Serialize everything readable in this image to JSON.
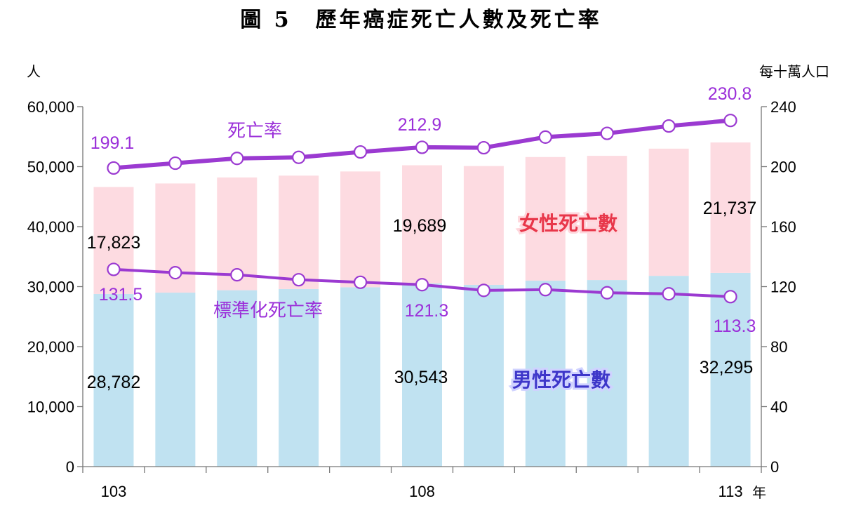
{
  "title": "圖 5　歷年癌症死亡人數及死亡率",
  "chart_data": {
    "type": "bar",
    "stacked": true,
    "categories": [
      "103",
      "104",
      "105",
      "106",
      "107",
      "108",
      "109",
      "110",
      "111",
      "112",
      "113"
    ],
    "x_tick_labels": [
      "103",
      "",
      "",
      "",
      "",
      "108",
      "",
      "",
      "",
      "",
      "113"
    ],
    "x_unit": "年",
    "left_axis": {
      "unit": "人",
      "ylim": [
        0,
        60000
      ],
      "ticks": [
        "0",
        "10,000",
        "20,000",
        "30,000",
        "40,000",
        "50,000",
        "60,000"
      ]
    },
    "right_axis": {
      "unit": "每十萬人口",
      "ylim": [
        0,
        240
      ],
      "ticks": [
        "0",
        "40",
        "80",
        "120",
        "160",
        "200",
        "240"
      ]
    },
    "bar_series": [
      {
        "name": "男性死亡數",
        "color": "#c0e2f1",
        "values": [
          28782,
          29000,
          29400,
          29600,
          29900,
          30543,
          30300,
          31000,
          31100,
          31800,
          32295
        ]
      },
      {
        "name": "女性死亡數",
        "color": "#fddbe1",
        "values": [
          17823,
          18200,
          18800,
          18900,
          19300,
          19689,
          19800,
          20600,
          20700,
          21200,
          21737
        ]
      }
    ],
    "line_series": [
      {
        "name": "死亡率",
        "axis": "right",
        "color": "#9b3ad1",
        "width": 6,
        "values": [
          199.1,
          202.3,
          205.5,
          206.2,
          209.8,
          212.9,
          212.6,
          219.7,
          222.2,
          227.1,
          230.8
        ]
      },
      {
        "name": "標準化死亡率",
        "axis": "right",
        "color": "#9b3ad1",
        "width": 4,
        "values": [
          131.5,
          129.3,
          127.9,
          124.6,
          122.9,
          121.3,
          117.5,
          118.0,
          115.9,
          115.2,
          113.3
        ]
      }
    ],
    "data_labels": {
      "male": [
        {
          "i": 0,
          "text": "28,782"
        },
        {
          "i": 5,
          "text": "30,543"
        },
        {
          "i": 10,
          "text": "32,295"
        }
      ],
      "female": [
        {
          "i": 0,
          "text": "17,823"
        },
        {
          "i": 5,
          "text": "19,689"
        },
        {
          "i": 10,
          "text": "21,737"
        }
      ],
      "rate": [
        {
          "i": 0,
          "text": "199.1"
        },
        {
          "i": 5,
          "text": "212.9"
        },
        {
          "i": 10,
          "text": "230.8"
        }
      ],
      "std_rate": [
        {
          "i": 0,
          "text": "131.5"
        },
        {
          "i": 5,
          "text": "121.3"
        },
        {
          "i": 10,
          "text": "113.3"
        }
      ]
    },
    "grid": false
  }
}
